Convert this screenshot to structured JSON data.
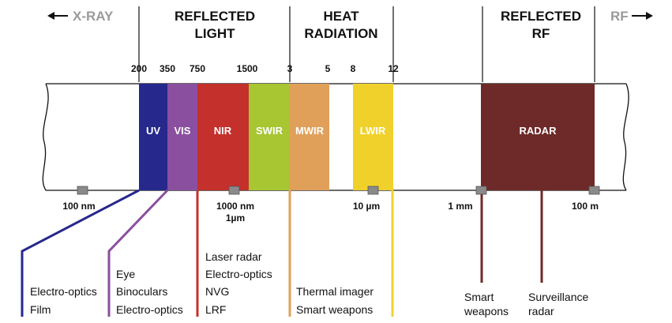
{
  "header": {
    "xray": "X-RAY",
    "rf_end": "RF",
    "reflected_light": [
      "REFLECTED",
      "LIGHT"
    ],
    "heat_radiation": [
      "HEAT",
      "RADIATION"
    ],
    "reflected_rf": [
      "REFLECTED",
      "RF"
    ]
  },
  "ticks": [
    {
      "id": "200",
      "label": "200"
    },
    {
      "id": "350",
      "label": "350"
    },
    {
      "id": "750",
      "label": "750"
    },
    {
      "id": "1500",
      "label": "1500"
    },
    {
      "id": "3",
      "label": "3"
    },
    {
      "id": "5",
      "label": "5"
    },
    {
      "id": "8",
      "label": "8"
    },
    {
      "id": "12",
      "label": "12"
    }
  ],
  "bands": [
    {
      "id": "uv",
      "label": "UV",
      "color": "#26288c"
    },
    {
      "id": "vis",
      "label": "VIS",
      "color": "#8a4f9e"
    },
    {
      "id": "nir",
      "label": "NIR",
      "color": "#c4302b"
    },
    {
      "id": "swir",
      "label": "SWIR",
      "color": "#a8c532"
    },
    {
      "id": "mwir",
      "label": "MWIR",
      "color": "#e0a05a"
    },
    {
      "id": "lwir",
      "label": "LWIR",
      "color": "#f0d12c"
    },
    {
      "id": "radar",
      "label": "RADAR",
      "color": "#6e2a28"
    }
  ],
  "scale_marks": {
    "nm100": "100 nm",
    "nm1000": [
      "1000 nm",
      "1µm"
    ],
    "um10": "10 µm",
    "mm1": "1 mm",
    "m100": "100 m"
  },
  "applications": {
    "uv": [
      "Electro-optics",
      "Film"
    ],
    "vis": [
      "Eye",
      "Binoculars",
      "Electro-optics"
    ],
    "nir": [
      "Laser radar",
      "Electro-optics",
      "NVG",
      "LRF"
    ],
    "mwir": [
      "Thermal imager",
      "Smart weapons"
    ],
    "radar_smart": [
      "Smart",
      "weapons"
    ],
    "radar_surv": [
      "Surveillance",
      "radar"
    ]
  },
  "colors": {
    "band_outline": "#111111",
    "marker": "#8a8a8a"
  }
}
